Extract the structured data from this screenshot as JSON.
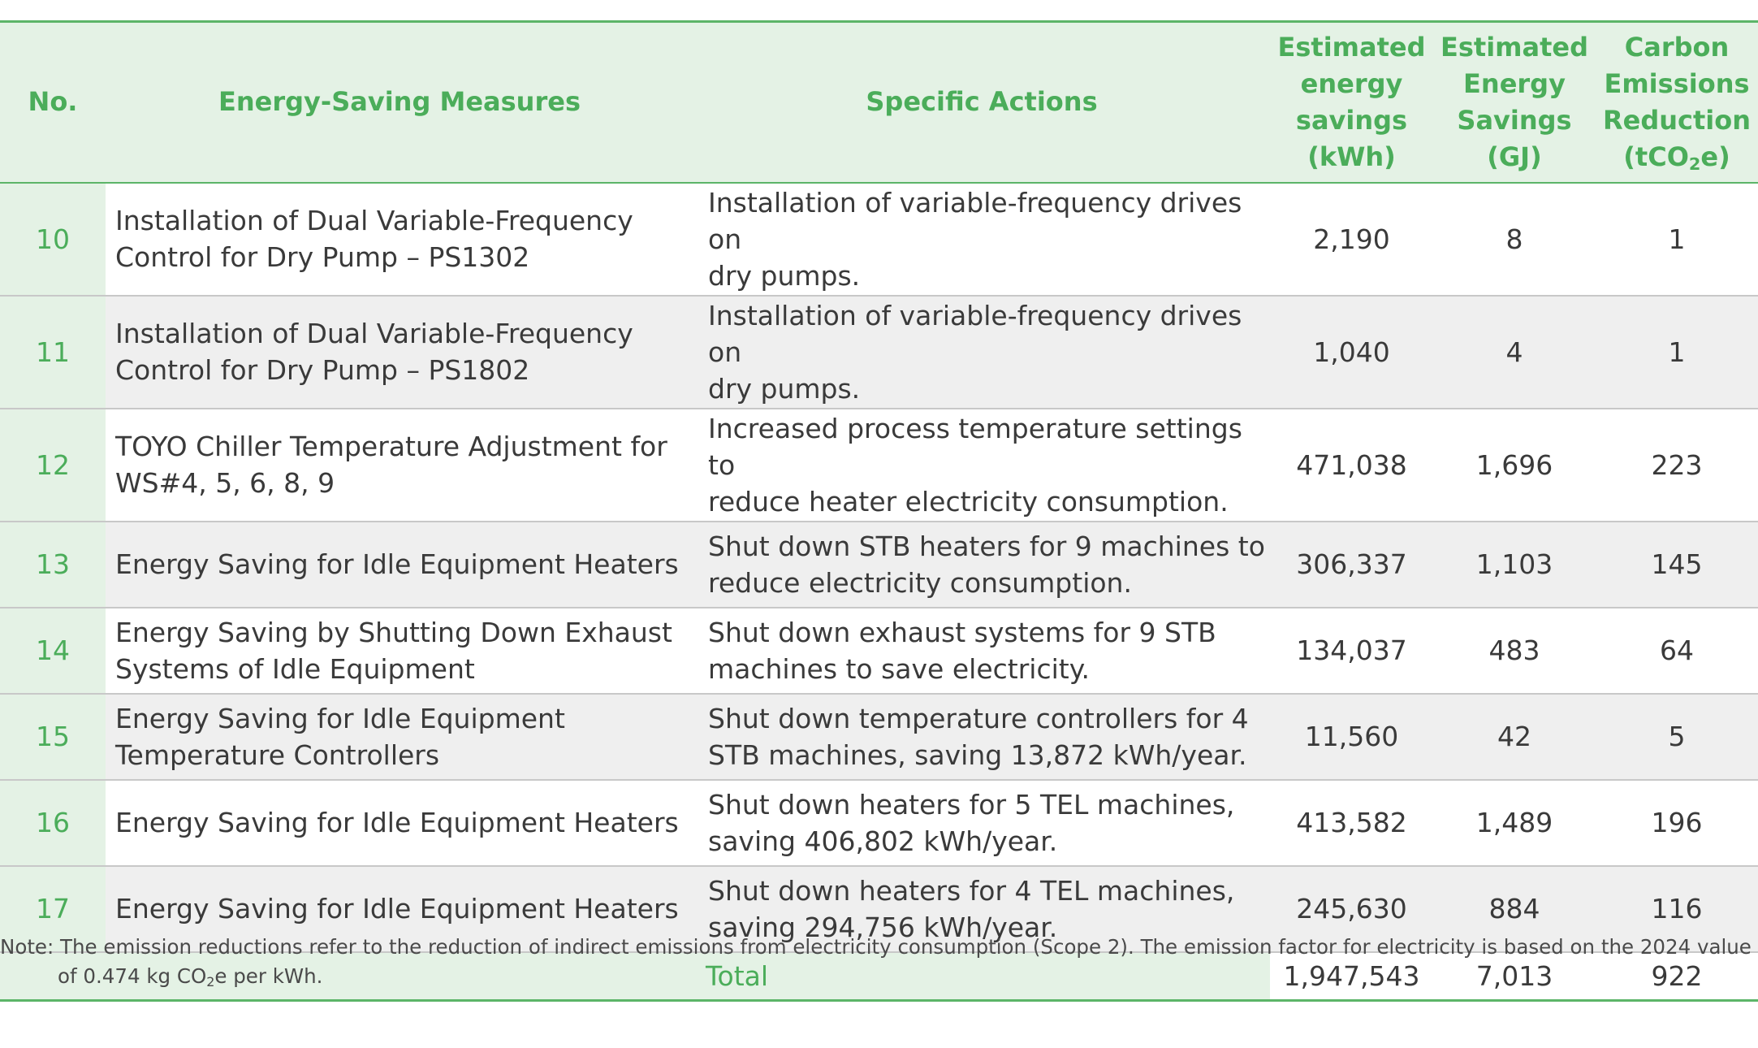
{
  "table": {
    "headers": {
      "no": "No.",
      "measures": "Energy-Saving Measures",
      "actions": "Specific Actions",
      "kwh": [
        "Estimated",
        "energy",
        "savings",
        "(kWh)"
      ],
      "gj": [
        "Estimated",
        "Energy",
        "Savings",
        "(GJ)"
      ],
      "co2": [
        "Carbon",
        "Emissions",
        "Reduction"
      ],
      "co2_unit_prefix": "(tCO",
      "co2_unit_sub": "2",
      "co2_unit_suffix": "e)"
    },
    "rows": [
      {
        "no": "10",
        "measure": [
          "Installation of Dual Variable-Frequency",
          "Control for Dry Pump – PS1302"
        ],
        "action": [
          "Installation of variable-frequency drives on",
          "dry pumps."
        ],
        "kwh": "2,190",
        "gj": "8",
        "co2": "1"
      },
      {
        "no": "11",
        "measure": [
          "Installation of Dual Variable-Frequency",
          "Control for Dry Pump – PS1802"
        ],
        "action": [
          "Installation of variable-frequency drives on",
          "dry pumps."
        ],
        "kwh": "1,040",
        "gj": "4",
        "co2": "1"
      },
      {
        "no": "12",
        "measure": [
          "TOYO Chiller Temperature Adjustment for",
          "WS#4, 5, 6, 8, 9"
        ],
        "action": [
          "Increased process temperature settings to",
          "reduce heater electricity consumption."
        ],
        "kwh": "471,038",
        "gj": "1,696",
        "co2": "223"
      },
      {
        "no": "13",
        "measure": [
          "Energy Saving for Idle Equipment Heaters"
        ],
        "action": [
          "Shut down STB heaters for 9 machines to",
          "reduce electricity consumption."
        ],
        "kwh": "306,337",
        "gj": "1,103",
        "co2": "145"
      },
      {
        "no": "14",
        "measure": [
          "Energy Saving by Shutting Down Exhaust",
          "Systems of Idle Equipment"
        ],
        "action": [
          "Shut down exhaust systems for 9 STB",
          "machines to save electricity."
        ],
        "kwh": "134,037",
        "gj": "483",
        "co2": "64"
      },
      {
        "no": "15",
        "measure": [
          "Energy Saving for Idle Equipment",
          "Temperature Controllers"
        ],
        "action": [
          "Shut down temperature controllers for 4",
          "STB machines, saving 13,872 kWh/year."
        ],
        "kwh": "11,560",
        "gj": "42",
        "co2": "5"
      },
      {
        "no": "16",
        "measure": [
          "Energy Saving for Idle Equipment Heaters"
        ],
        "action": [
          "Shut down heaters for 5 TEL machines,",
          "saving 406,802 kWh/year."
        ],
        "kwh": "413,582",
        "gj": "1,489",
        "co2": "196"
      },
      {
        "no": "17",
        "measure": [
          "Energy Saving for Idle Equipment Heaters"
        ],
        "action": [
          "Shut down heaters for 4 TEL machines,",
          "saving 294,756 kWh/year."
        ],
        "kwh": "245,630",
        "gj": "884",
        "co2": "116"
      }
    ],
    "total": {
      "label": "Total",
      "kwh": "1,947,543",
      "gj": "7,013",
      "co2": "922"
    }
  },
  "note": {
    "line1": "Note: The emission reductions refer to the reduction of indirect emissions from electricity consumption (Scope 2). The emission factor for electricity is based on the 2024 value",
    "line2_prefix": "of 0.474 kg CO",
    "line2_sub": "2",
    "line2_suffix": "e per kWh."
  },
  "colors": {
    "accent_green": "#4bad5a",
    "header_bg": "#e4f2e5",
    "row_alt_bg": "#efefef"
  }
}
